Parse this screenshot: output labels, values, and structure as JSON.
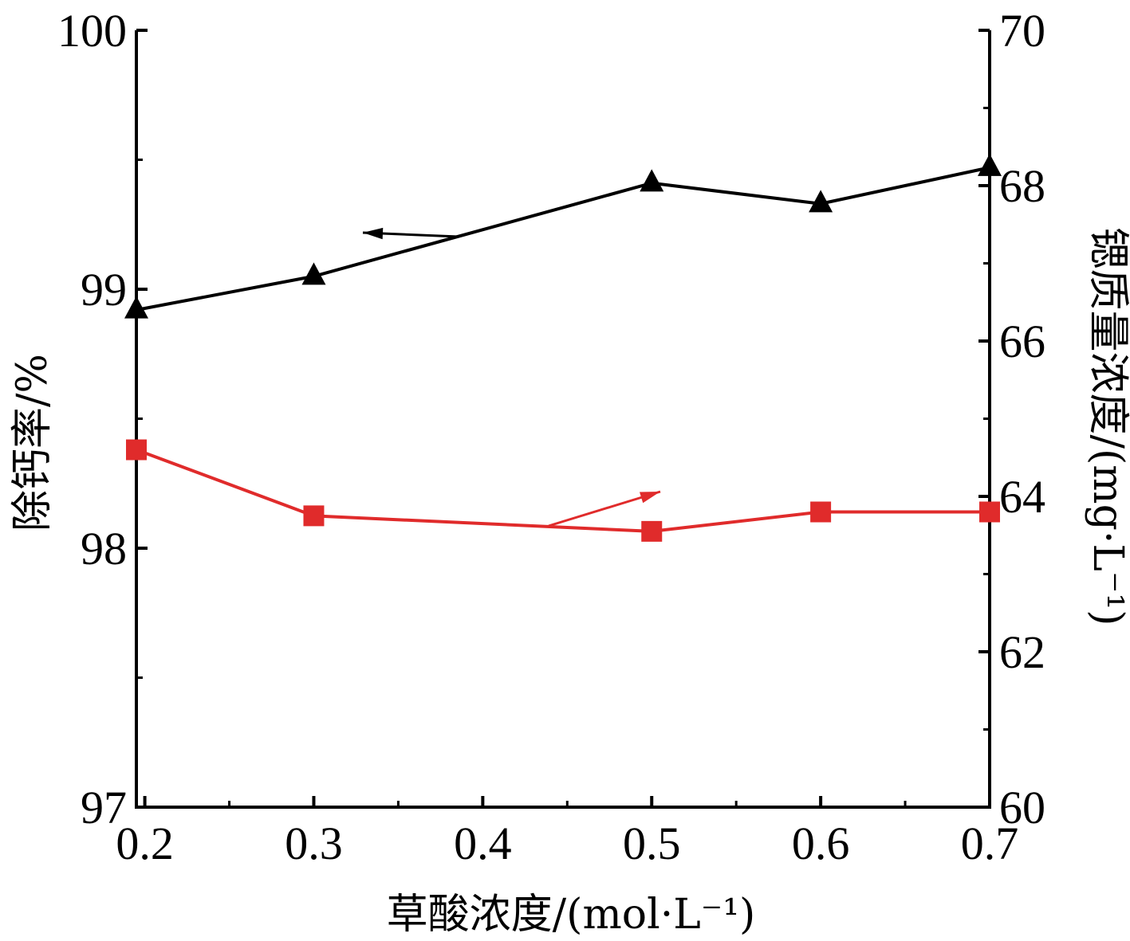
{
  "chart_data": {
    "type": "line",
    "x": [
      0.195,
      0.3,
      0.5,
      0.6,
      0.7
    ],
    "xlim": [
      0.195,
      0.7
    ],
    "x_ticks": [
      0.2,
      0.3,
      0.4,
      0.5,
      0.6,
      0.7
    ],
    "x_tick_labels": [
      "0.2",
      "0.3",
      "0.4",
      "0.5",
      "0.6",
      "0.7"
    ],
    "xlabel": "草酸浓度/(mol·L⁻¹)",
    "left_axis": {
      "label": "除钙率/%",
      "ylim": [
        97,
        100
      ],
      "ticks": [
        97,
        98,
        99,
        100
      ],
      "tick_labels": [
        "97",
        "98",
        "99",
        "100"
      ]
    },
    "right_axis": {
      "label": "锶质量浓度/(mg·L⁻¹)",
      "ylim": [
        60,
        70
      ],
      "ticks": [
        60,
        62,
        64,
        66,
        68,
        70
      ],
      "tick_labels": [
        "60",
        "62",
        "64",
        "66",
        "68",
        "70"
      ]
    },
    "series": [
      {
        "axis": "left",
        "marker": "triangle",
        "color": "#000000",
        "values": [
          98.92,
          99.05,
          99.41,
          99.33,
          99.47
        ]
      },
      {
        "axis": "right",
        "marker": "square",
        "color": "#e02b2b",
        "values": [
          64.6,
          63.75,
          63.55,
          63.8,
          63.8
        ]
      }
    ],
    "annotations": [
      {
        "type": "arrow",
        "points_to": "left",
        "color": "#000000"
      },
      {
        "type": "arrow",
        "points_to": "right",
        "color": "#e02b2b"
      }
    ],
    "grid": false,
    "legend": "none"
  }
}
